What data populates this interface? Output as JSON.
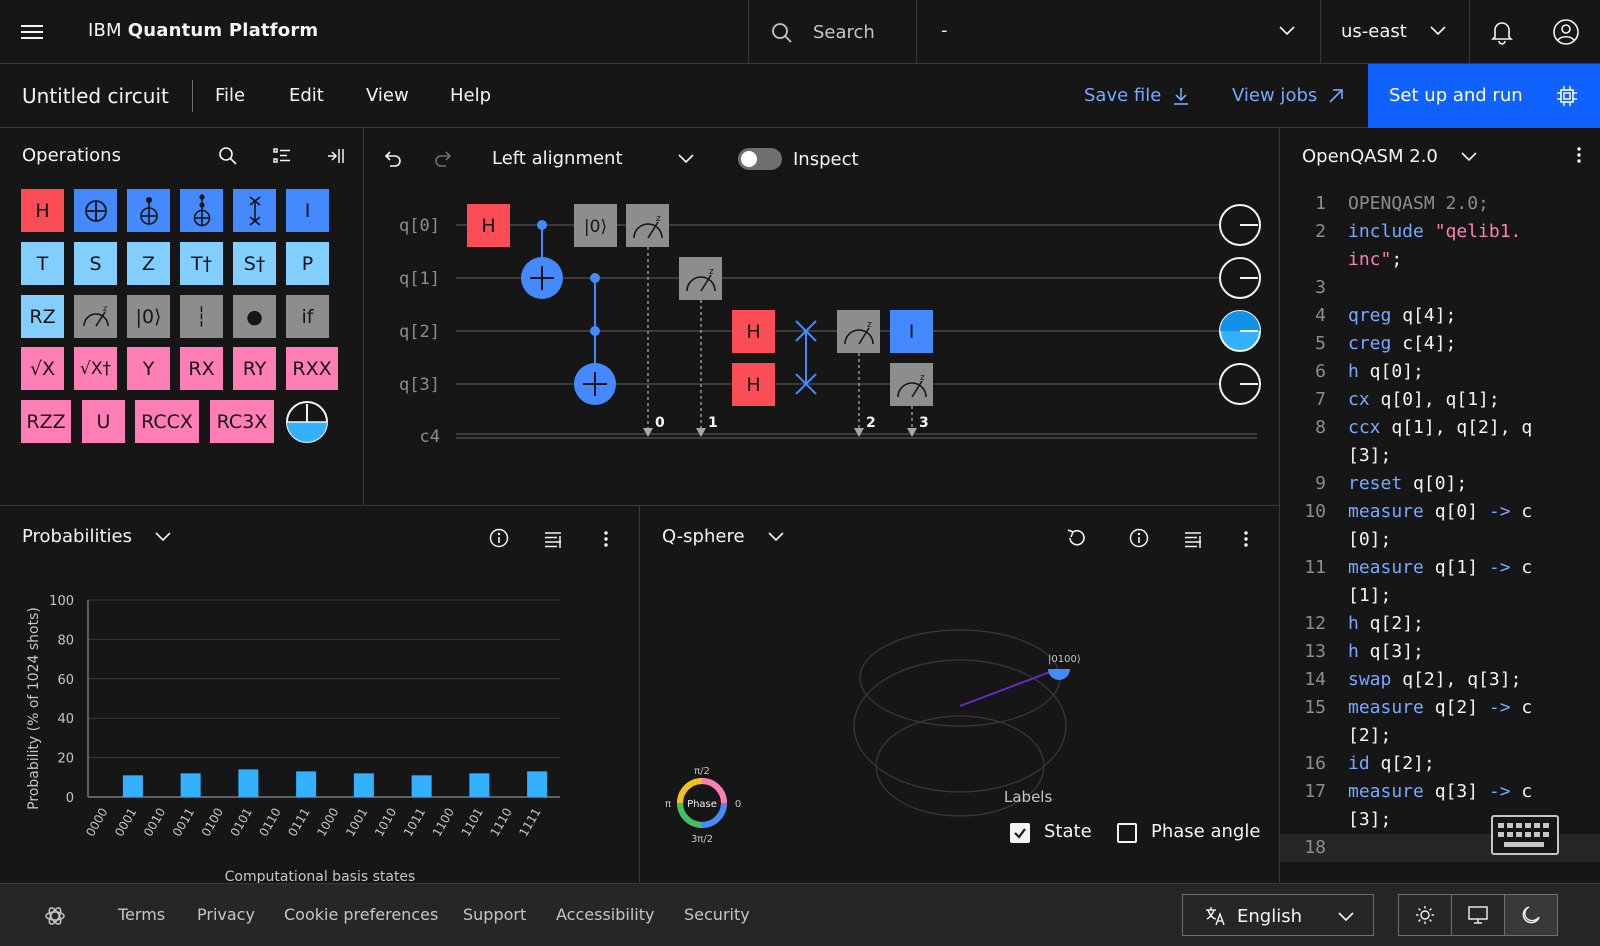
{
  "topbar": {
    "brand_prefix": "IBM",
    "brand_name": "Quantum Platform",
    "search_placeholder": "Search",
    "instance_value": "-",
    "region": "us-east"
  },
  "toolbar": {
    "circuit_title": "Untitled circuit",
    "menus": [
      "File",
      "Edit",
      "View",
      "Help"
    ],
    "save_label": "Save file",
    "view_jobs_label": "View jobs",
    "setup_label": "Set up and run"
  },
  "operations": {
    "title": "Operations",
    "gates": [
      {
        "label": "H",
        "color": "#fa4d56"
      },
      {
        "label": "",
        "icon": "cnot-icon",
        "color": "#4589ff"
      },
      {
        "label": "",
        "icon": "toffoli-icon",
        "color": "#4589ff"
      },
      {
        "label": "",
        "icon": "ccx-icon",
        "color": "#4589ff"
      },
      {
        "label": "",
        "icon": "swap-icon",
        "color": "#4589ff"
      },
      {
        "label": "I",
        "color": "#4589ff"
      },
      {
        "label": "T",
        "color": "#82cfff"
      },
      {
        "label": "S",
        "color": "#82cfff"
      },
      {
        "label": "Z",
        "color": "#82cfff"
      },
      {
        "label": "T†",
        "color": "#82cfff"
      },
      {
        "label": "S†",
        "color": "#82cfff"
      },
      {
        "label": "P",
        "color": "#82cfff"
      },
      {
        "label": "RZ",
        "color": "#82cfff"
      },
      {
        "label": "",
        "icon": "measure-icon",
        "color": "#8d8d8d"
      },
      {
        "label": "|0⟩",
        "color": "#8d8d8d"
      },
      {
        "label": "┆",
        "color": "#8d8d8d"
      },
      {
        "label": "●",
        "color": "#8d8d8d"
      },
      {
        "label": "if",
        "color": "#8d8d8d"
      },
      {
        "label": "√X",
        "color": "#ff7eb6"
      },
      {
        "label": "√X†",
        "color": "#ff7eb6"
      },
      {
        "label": "Y",
        "color": "#ff7eb6"
      },
      {
        "label": "RX",
        "color": "#ff7eb6"
      },
      {
        "label": "RY",
        "color": "#ff7eb6"
      },
      {
        "label": "RXX",
        "color": "#ff7eb6"
      },
      {
        "label": "RZZ",
        "color": "#ff7eb6"
      },
      {
        "label": "U",
        "color": "#ff7eb6"
      },
      {
        "label": "RCCX",
        "color": "#ff7eb6"
      },
      {
        "label": "RC3X",
        "color": "#ff7eb6"
      }
    ]
  },
  "composer": {
    "alignment": "Left alignment",
    "inspect_label": "Inspect",
    "qubits": [
      "q[0]",
      "q[1]",
      "q[2]",
      "q[3]"
    ],
    "classical": "c4",
    "measure_indices": [
      "0",
      "1",
      "2",
      "3"
    ],
    "gate_labels": {
      "h": "H",
      "reset": "|0⟩",
      "id": "I"
    }
  },
  "qasm": {
    "title": "OpenQASM 2.0",
    "lines": [
      {
        "n": "1",
        "parts": [
          [
            "OPENQASM 2.0;",
            "cm"
          ]
        ]
      },
      {
        "n": "2",
        "parts": [
          [
            "include ",
            "kw"
          ],
          [
            "\"qelib1.",
            "str"
          ]
        ]
      },
      {
        "n": "",
        "parts": [
          [
            "inc\"",
            "str"
          ],
          [
            ";",
            ""
          ]
        ]
      },
      {
        "n": "3",
        "parts": []
      },
      {
        "n": "4",
        "parts": [
          [
            "qreg",
            "kw"
          ],
          [
            " q[4];",
            ""
          ]
        ]
      },
      {
        "n": "5",
        "parts": [
          [
            "creg",
            "kw"
          ],
          [
            " c[4];",
            ""
          ]
        ]
      },
      {
        "n": "6",
        "parts": [
          [
            "h",
            "kw"
          ],
          [
            " q[0];",
            ""
          ]
        ]
      },
      {
        "n": "7",
        "parts": [
          [
            "cx",
            "kw"
          ],
          [
            " q[0], q[1];",
            ""
          ]
        ]
      },
      {
        "n": "8",
        "parts": [
          [
            "ccx",
            "kw"
          ],
          [
            " q[1], q[2], q",
            ""
          ]
        ]
      },
      {
        "n": "",
        "parts": [
          [
            "[3];",
            ""
          ]
        ]
      },
      {
        "n": "9",
        "parts": [
          [
            "reset",
            "kw"
          ],
          [
            " q[0];",
            ""
          ]
        ]
      },
      {
        "n": "10",
        "parts": [
          [
            "measure",
            "kw"
          ],
          [
            " q[0] ",
            ""
          ],
          [
            "->",
            "kw"
          ],
          [
            " c",
            ""
          ]
        ]
      },
      {
        "n": "",
        "parts": [
          [
            "[0];",
            ""
          ]
        ]
      },
      {
        "n": "11",
        "parts": [
          [
            "measure",
            "kw"
          ],
          [
            " q[1] ",
            ""
          ],
          [
            "->",
            "kw"
          ],
          [
            " c",
            ""
          ]
        ]
      },
      {
        "n": "",
        "parts": [
          [
            "[1];",
            ""
          ]
        ]
      },
      {
        "n": "12",
        "parts": [
          [
            "h",
            "kw"
          ],
          [
            " q[2];",
            ""
          ]
        ]
      },
      {
        "n": "13",
        "parts": [
          [
            "h",
            "kw"
          ],
          [
            " q[3];",
            ""
          ]
        ]
      },
      {
        "n": "14",
        "parts": [
          [
            "swap",
            "kw"
          ],
          [
            " q[2], q[3];",
            ""
          ]
        ]
      },
      {
        "n": "15",
        "parts": [
          [
            "measure",
            "kw"
          ],
          [
            " q[2] ",
            ""
          ],
          [
            "->",
            "kw"
          ],
          [
            " c",
            ""
          ]
        ]
      },
      {
        "n": "",
        "parts": [
          [
            "[2];",
            ""
          ]
        ]
      },
      {
        "n": "16",
        "parts": [
          [
            "id",
            "kw"
          ],
          [
            " q[2];",
            ""
          ]
        ]
      },
      {
        "n": "17",
        "parts": [
          [
            "measure",
            "kw"
          ],
          [
            " q[3] ",
            ""
          ],
          [
            "->",
            "kw"
          ],
          [
            " c",
            ""
          ]
        ]
      },
      {
        "n": "",
        "parts": [
          [
            "[3];",
            ""
          ]
        ]
      },
      {
        "n": "18",
        "parts": []
      }
    ]
  },
  "probabilities": {
    "title": "Probabilities"
  },
  "chart_data": {
    "type": "bar",
    "categories": [
      "0000",
      "0001",
      "0010",
      "0011",
      "0100",
      "0101",
      "0110",
      "0111",
      "1000",
      "1001",
      "1010",
      "1011",
      "1100",
      "1101",
      "1110",
      "1111"
    ],
    "values": [
      0,
      11,
      0,
      12,
      0,
      14,
      0,
      13,
      0,
      12,
      0,
      11,
      0,
      12,
      0,
      13
    ],
    "xlabel": "Computational basis states",
    "ylabel": "Probability (% of 1024 shots)",
    "ylim": [
      0,
      100
    ],
    "yticks": [
      "0",
      "20",
      "40",
      "60",
      "80",
      "100"
    ],
    "bar_color": "#33b1ff"
  },
  "qsphere": {
    "title": "Q-sphere",
    "state_label": "|0100⟩",
    "labels_title": "Labels",
    "state_checkbox": "State",
    "state_checked": true,
    "phase_checkbox": "Phase angle",
    "phase_checked": false,
    "phase_wheel": {
      "center": "Phase",
      "top": "π/2",
      "left": "π",
      "right": "0",
      "bottom": "3π/2"
    }
  },
  "footer": {
    "links": [
      "Terms",
      "Privacy",
      "Cookie preferences",
      "Support",
      "Accessibility",
      "Security"
    ],
    "language": "English"
  }
}
